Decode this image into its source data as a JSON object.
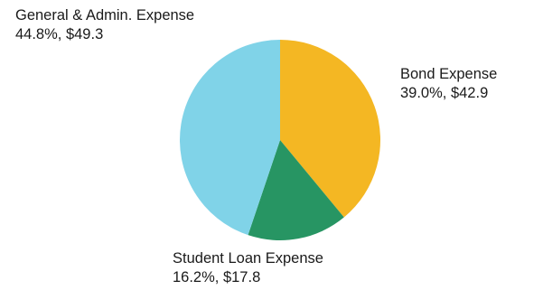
{
  "chart_data": {
    "type": "pie",
    "title": "",
    "slices": [
      {
        "name": "Bond Expense",
        "percent_label": "39.0%, $42.9",
        "value": 42.9,
        "percent": 39.0,
        "color": "#F4B723"
      },
      {
        "name": "Student Loan Expense",
        "percent_label": "16.2%, $17.8",
        "value": 17.8,
        "percent": 16.2,
        "color": "#279563"
      },
      {
        "name": "General & Admin. Expense",
        "percent_label": "44.8%, $49.3",
        "value": 49.3,
        "percent": 44.8,
        "color": "#80D3E8"
      }
    ]
  }
}
